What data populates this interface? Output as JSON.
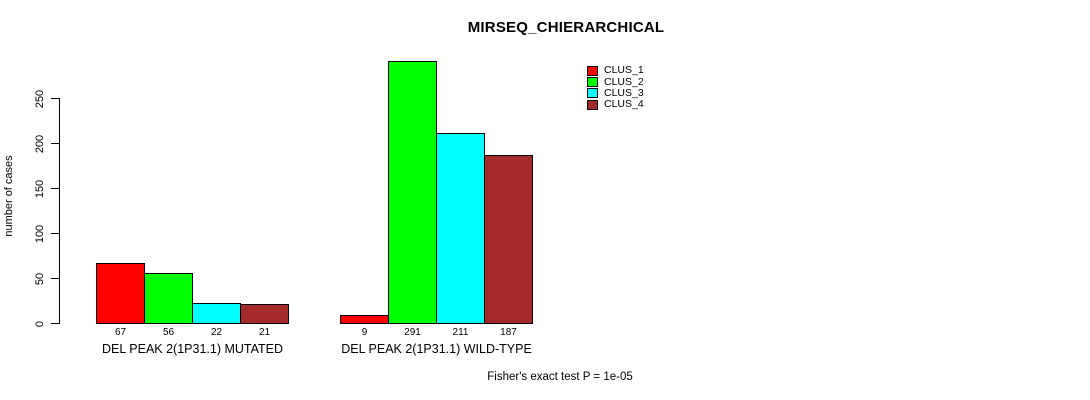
{
  "chart_data": {
    "type": "bar",
    "title": "MIRSEQ_CHIERARCHICAL",
    "ylabel": "number of cases",
    "xlabel": "",
    "categories": [
      "DEL PEAK 2(1P31.1) MUTATED",
      "DEL PEAK 2(1P31.1) WILD-TYPE"
    ],
    "series": [
      {
        "name": "CLUS_1",
        "color": "#ff0000",
        "values": [
          67,
          9
        ]
      },
      {
        "name": "CLUS_2",
        "color": "#00ff00",
        "values": [
          56,
          291
        ]
      },
      {
        "name": "CLUS_3",
        "color": "#00ffff",
        "values": [
          22,
          211
        ]
      },
      {
        "name": "CLUS_4",
        "color": "#a52a2a",
        "values": [
          21,
          187
        ]
      }
    ],
    "yticks": [
      0,
      50,
      100,
      150,
      200,
      250
    ],
    "ylim": [
      0,
      295
    ],
    "grid": false,
    "legend_position": "inside-top-right",
    "value_labels_shown": true,
    "annotation": "Fisher's exact test P = 1e-05",
    "axis_color": "#000000",
    "background_color": "#ffffff"
  }
}
